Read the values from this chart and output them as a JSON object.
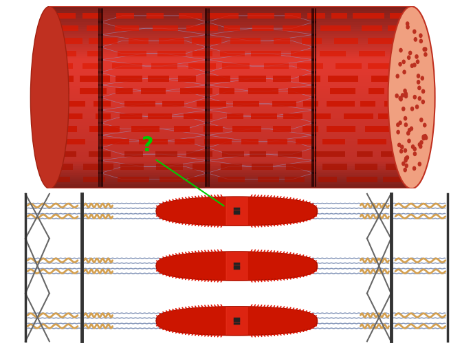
{
  "bg_color": "#ffffff",
  "cylinder": {
    "body_color": "#e06050",
    "top_color": "#f5b0a0",
    "bottom_color": "#c03020",
    "edge_color": "#c03020",
    "right_face_color": "#f0a080",
    "striation_color": "#cc1500",
    "striation_dark": "#aa1000",
    "hex_color": "#9999cc",
    "zdisk_color": "#330000",
    "dot_color": "#bb3020"
  },
  "sarcomere": {
    "actin_color": "#8899bb",
    "myosin_color": "#cc1500",
    "myosin_head_color": "#dd1100",
    "myosin_center_color": "#ee4422",
    "titin_color": "#d4a050",
    "zdisk_color": "#333333",
    "mline_color": "#222222",
    "zdisk_brace_color": "#555555",
    "bg": "#ffffff"
  },
  "qmark": {
    "color": "#00cc00",
    "fontsize": 22
  },
  "arrow": {
    "color": "#00cc00",
    "lw": 1.5
  }
}
